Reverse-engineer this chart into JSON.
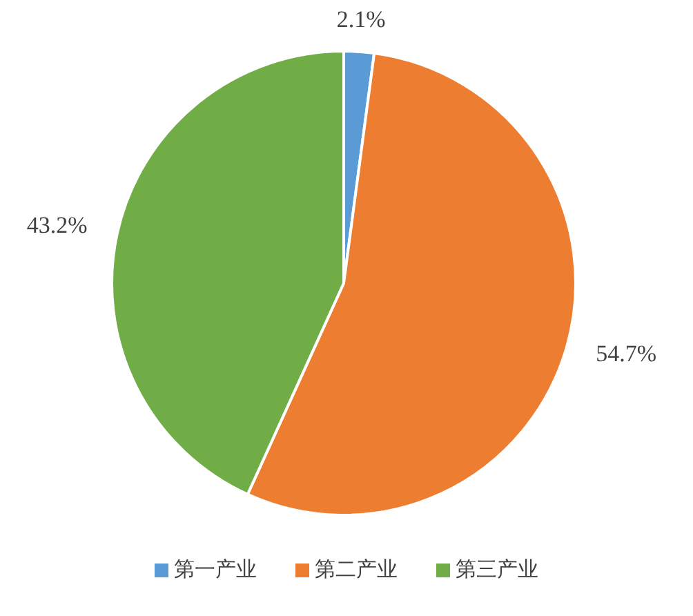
{
  "chart_data": {
    "type": "pie",
    "categories": [
      "第一产业",
      "第二产业",
      "第三产业"
    ],
    "values": [
      2.1,
      54.7,
      43.2
    ],
    "colors": [
      "#5b9bd5",
      "#ed7d31",
      "#70ad47"
    ],
    "value_labels": [
      "2.1%",
      "54.7%",
      "43.2%"
    ],
    "legend": "bottom"
  }
}
